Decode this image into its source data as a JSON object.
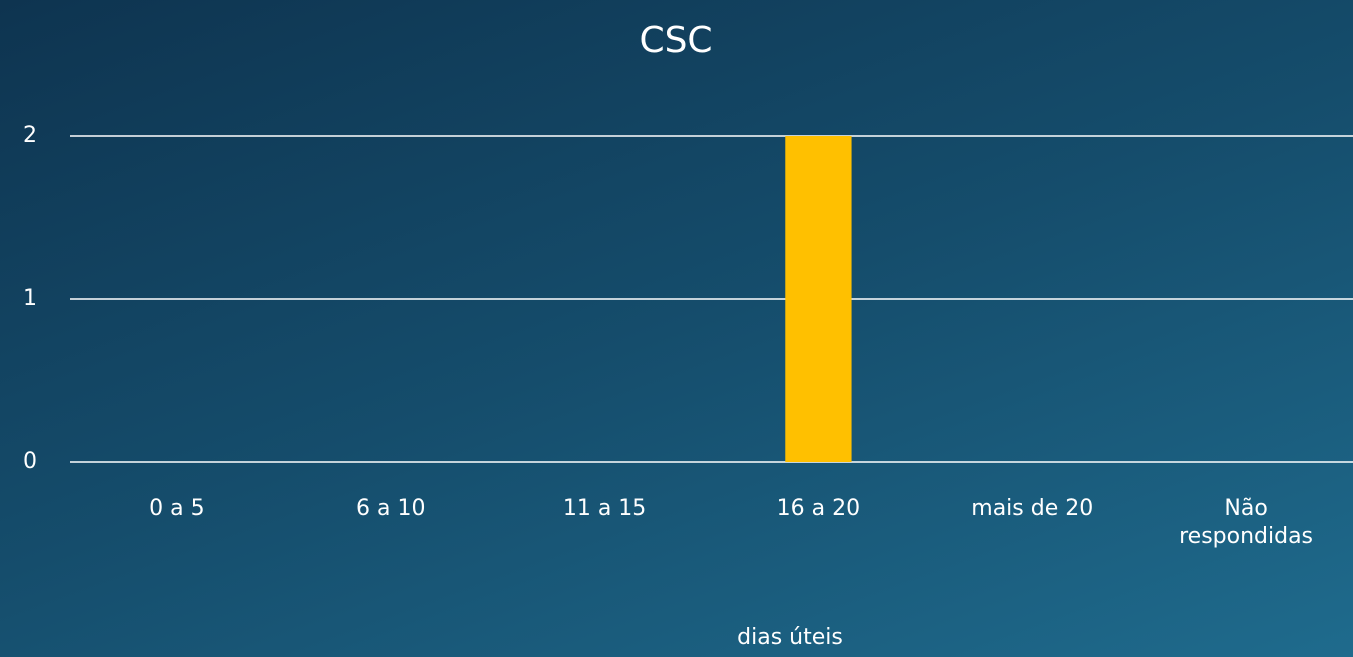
{
  "chart_data": {
    "type": "bar",
    "title": "CSC",
    "x_label": "dias úteis",
    "categories": [
      "0 a 5",
      "6 a 10",
      "11 a 15",
      "16 a 20",
      "mais de 20",
      "Não respondidas"
    ],
    "values": [
      0,
      0,
      0,
      2,
      0,
      0
    ],
    "color": "#ffc000",
    "ylim": [
      0,
      2
    ],
    "yticks": [
      0,
      1,
      2
    ],
    "grid": true
  }
}
